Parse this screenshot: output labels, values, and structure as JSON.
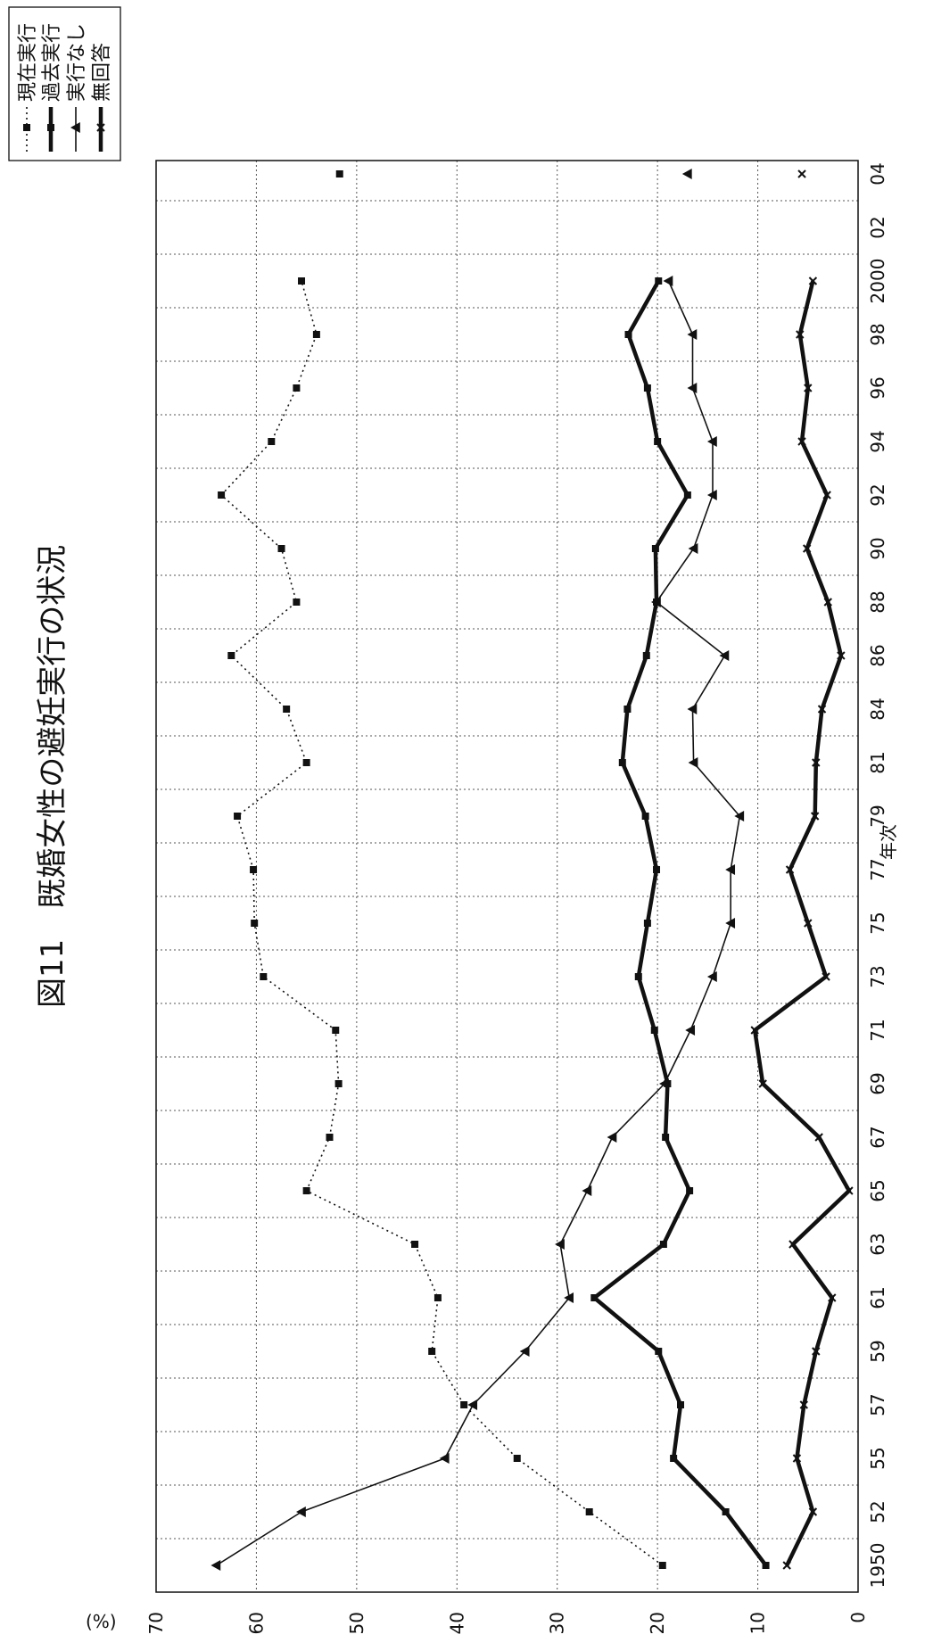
{
  "chart_data": {
    "type": "line",
    "title": "図11　既婚女性の避妊実行の状況",
    "xlabel": "年次",
    "ylabel": "(%)",
    "ylim": [
      0,
      70
    ],
    "y_ticks": [
      0,
      10,
      20,
      30,
      40,
      50,
      60,
      70
    ],
    "grid": true,
    "legend_position": "top-right",
    "categories": [
      "1950",
      "52",
      "55",
      "57",
      "59",
      "61",
      "63",
      "65",
      "67",
      "69",
      "71",
      "73",
      "75",
      "77",
      "79",
      "81",
      "84",
      "86",
      "88",
      "90",
      "92",
      "94",
      "96",
      "98",
      "2000",
      "02",
      "04"
    ],
    "series": [
      {
        "name": "現在実行",
        "style": "dotted",
        "marker": "square",
        "color": "#111111",
        "values": [
          19.5,
          26.8,
          34.0,
          39.3,
          42.5,
          41.9,
          44.2,
          55.0,
          52.7,
          51.8,
          52.1,
          59.3,
          60.2,
          60.3,
          61.9,
          55.0,
          57.0,
          62.5,
          56.0,
          57.5,
          63.5,
          58.5,
          56.0,
          54.0,
          55.5,
          null,
          51.7
        ]
      },
      {
        "name": "過去実行",
        "style": "thick",
        "marker": "square",
        "color": "#111111",
        "values": [
          9.2,
          13.2,
          18.4,
          17.7,
          19.9,
          26.3,
          19.4,
          16.8,
          19.2,
          19.0,
          20.3,
          21.9,
          21.0,
          20.1,
          21.2,
          23.5,
          23.0,
          21.1,
          20.1,
          20.2,
          17.0,
          20.0,
          21.0,
          22.9,
          19.9,
          null,
          null
        ]
      },
      {
        "name": "実行なし",
        "style": "thin",
        "marker": "triangle",
        "color": "#111111",
        "values": [
          64.0,
          55.5,
          41.2,
          38.4,
          33.2,
          28.8,
          29.7,
          27.0,
          24.5,
          19.3,
          16.7,
          14.5,
          12.7,
          12.7,
          11.8,
          16.4,
          16.5,
          13.3,
          20.1,
          16.4,
          14.5,
          14.5,
          16.5,
          16.5,
          18.9,
          null,
          17.0
        ]
      },
      {
        "name": "無回答",
        "style": "thick",
        "marker": "x",
        "color": "#111111",
        "values": [
          7.1,
          4.5,
          6.1,
          5.4,
          4.2,
          2.6,
          6.5,
          0.9,
          3.9,
          9.5,
          10.3,
          3.2,
          5.0,
          6.8,
          4.3,
          4.2,
          3.6,
          1.7,
          3.0,
          5.1,
          3.1,
          5.6,
          5.0,
          5.8,
          4.5,
          null,
          5.6
        ]
      }
    ]
  }
}
